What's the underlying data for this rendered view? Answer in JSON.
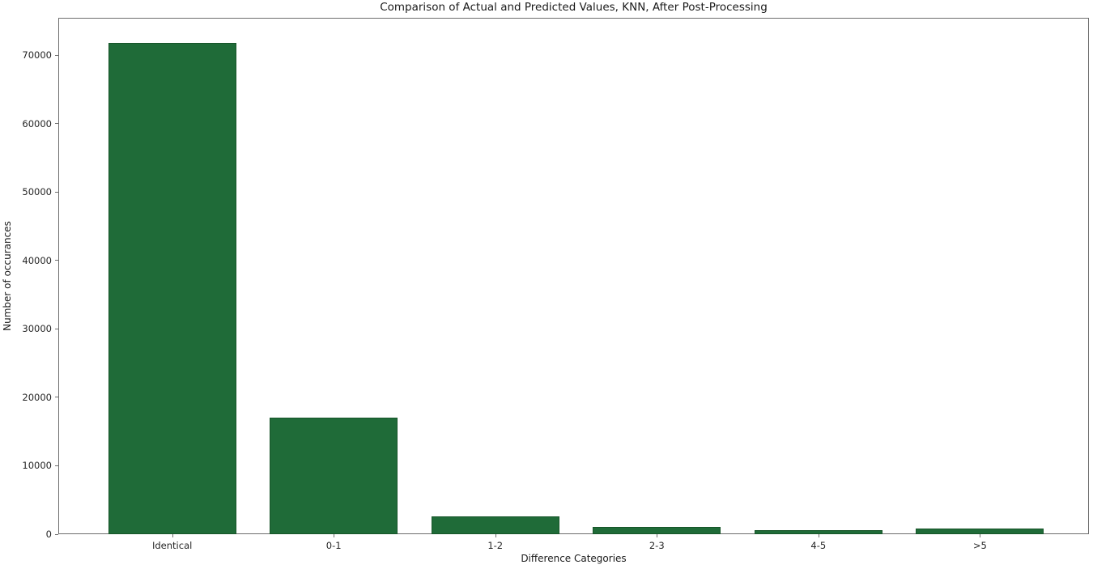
{
  "chart_data": {
    "type": "bar",
    "title": "Comparison of Actual and Predicted Values, KNN, After Post-Processing",
    "xlabel": "Difference Categories",
    "ylabel": "Number of occurances",
    "categories": [
      "Identical",
      "0-1",
      "1-2",
      "2-3",
      "4-5",
      ">5"
    ],
    "values": [
      71800,
      17050,
      2600,
      1050,
      600,
      800
    ],
    "yticks": [
      0,
      10000,
      20000,
      30000,
      40000,
      50000,
      60000,
      70000
    ],
    "ylim": [
      0,
      75500
    ],
    "bar_color": "#1f6b38",
    "bar_edge_color": "#175529",
    "grid": false,
    "legend": false,
    "background": "#ffffff"
  }
}
